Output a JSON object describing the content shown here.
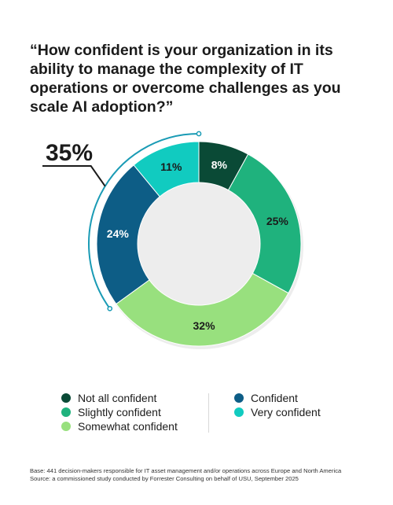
{
  "question": "“How confident is your organization in its ability to manage the complexity of IT operations or overcome challenges as you scale AI adoption?”",
  "callout": "35%",
  "chart_data": {
    "type": "pie",
    "variant": "donut",
    "title": "",
    "categories": [
      "Not all confident",
      "Slightly confident",
      "Somewhat confident",
      "Confident",
      "Very confident"
    ],
    "values": [
      8,
      25,
      32,
      24,
      11
    ],
    "labels": [
      "8%",
      "25%",
      "32%",
      "24%",
      "11%"
    ],
    "colors": [
      "#0a4a36",
      "#1fb27d",
      "#98e07e",
      "#0d5d86",
      "#11cbc0"
    ],
    "label_colors": [
      "#ffffff",
      "#1b1b1b",
      "#1b1b1b",
      "#ffffff",
      "#1b1b1b"
    ],
    "callout_bracket": {
      "value": "35%",
      "covers": [
        "Confident",
        "Very confident"
      ],
      "color": "#1a9bb5"
    },
    "legend_position": "bottom"
  },
  "legend": [
    {
      "label": "Not all confident",
      "color": "#0a4a36"
    },
    {
      "label": "Slightly confident",
      "color": "#1fb27d"
    },
    {
      "label": "Somewhat confident",
      "color": "#98e07e"
    },
    {
      "label": "Confident",
      "color": "#0d5d86"
    },
    {
      "label": "Very confident",
      "color": "#11cbc0"
    }
  ],
  "footnote": {
    "base": "Base: 441 decision-makers responsible for IT asset management and/or operations across Europe and North America",
    "source": "Source: a commissioned study conducted by Forrester Consulting on behalf of USU, September 2025"
  }
}
